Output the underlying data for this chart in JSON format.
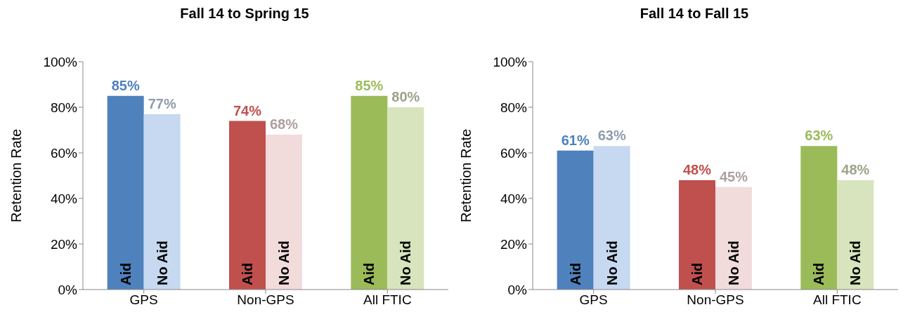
{
  "chart_data": [
    {
      "type": "bar",
      "title": "Fall 14 to Spring 15",
      "ylabel": "Retention Rate",
      "categories": [
        "GPS",
        "Non-GPS",
        "All FTIC"
      ],
      "series": [
        {
          "name": "Aid",
          "colors": [
            "#4f81bd",
            "#c0504d",
            "#9bbb59"
          ],
          "values": [
            85,
            74,
            85
          ],
          "value_labels": [
            "85%",
            "74%",
            "85%"
          ]
        },
        {
          "name": "No Aid",
          "colors": [
            "#c6d9f1",
            "#f2dcdb",
            "#d7e4bd"
          ],
          "values": [
            77,
            68,
            80
          ],
          "value_labels": [
            "77%",
            "68%",
            "80%"
          ]
        }
      ],
      "ylim": [
        0,
        100
      ],
      "yticks": [
        {
          "value": 0,
          "label": "0%"
        },
        {
          "value": 20,
          "label": "20%"
        },
        {
          "value": 40,
          "label": "40%"
        },
        {
          "value": 60,
          "label": "60%"
        },
        {
          "value": 80,
          "label": "80%"
        },
        {
          "value": 100,
          "label": "100%"
        }
      ],
      "grid": false,
      "legend": false
    },
    {
      "type": "bar",
      "title": "Fall 14 to Fall 15",
      "ylabel": "Retention Rate",
      "categories": [
        "GPS",
        "Non-GPS",
        "All FTIC"
      ],
      "series": [
        {
          "name": "Aid",
          "colors": [
            "#4f81bd",
            "#c0504d",
            "#9bbb59"
          ],
          "values": [
            61,
            48,
            63
          ],
          "value_labels": [
            "61%",
            "48%",
            "63%"
          ]
        },
        {
          "name": "No Aid",
          "colors": [
            "#c6d9f1",
            "#f2dcdb",
            "#d7e4bd"
          ],
          "values": [
            63,
            45,
            48
          ],
          "value_labels": [
            "63%",
            "45%",
            "48%"
          ]
        }
      ],
      "ylim": [
        0,
        100
      ],
      "yticks": [
        {
          "value": 0,
          "label": "0%"
        },
        {
          "value": 20,
          "label": "20%"
        },
        {
          "value": 40,
          "label": "40%"
        },
        {
          "value": 60,
          "label": "60%"
        },
        {
          "value": 80,
          "label": "80%"
        },
        {
          "value": 100,
          "label": "100%"
        }
      ],
      "grid": false,
      "legend": false
    }
  ]
}
